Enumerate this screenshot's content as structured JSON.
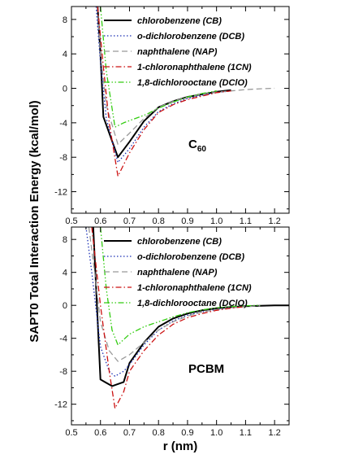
{
  "chart_data": [
    {
      "type": "line",
      "panel_label_main": "C",
      "panel_label_sub": "60",
      "xlim": [
        0.5,
        1.25
      ],
      "ylim": [
        -14.5,
        9.5
      ],
      "xticks": [
        "0.5",
        "0.6",
        "0.7",
        "0.8",
        "0.9",
        "1.0",
        "1.1",
        "1.2"
      ],
      "yticks": [
        "8",
        "4",
        "0",
        "-4",
        "-8",
        "-12"
      ],
      "legend_position": "top-right",
      "series": [
        {
          "name": "chlorobenzene (CB)",
          "color": "#000000",
          "dash": "solid",
          "x": [
            0.59,
            0.6,
            0.61,
            0.66,
            0.7,
            0.75,
            0.8,
            0.85,
            0.9,
            0.95,
            1.0,
            1.05
          ],
          "y": [
            9.5,
            4.0,
            -3.3,
            -8.0,
            -6.2,
            -3.8,
            -2.2,
            -1.5,
            -1.0,
            -0.7,
            -0.4,
            -0.2
          ]
        },
        {
          "name": "o-dichlorobenzene (DCB)",
          "color": "#1a2fb5",
          "dash": "dot",
          "x": [
            0.585,
            0.6,
            0.62,
            0.66,
            0.7,
            0.75,
            0.8,
            0.85,
            0.9,
            0.95,
            1.0,
            1.05
          ],
          "y": [
            9.5,
            3.0,
            -3.5,
            -8.6,
            -7.0,
            -4.5,
            -2.7,
            -1.8,
            -1.2,
            -0.8,
            -0.5,
            -0.3
          ]
        },
        {
          "name": "naphthalene (NAP)",
          "color": "#999999",
          "dash": "dash",
          "x": [
            0.59,
            0.6,
            0.62,
            0.66,
            0.7,
            0.75,
            0.8,
            0.85,
            0.9,
            0.95,
            1.0,
            1.05,
            1.1,
            1.15,
            1.2
          ],
          "y": [
            9.5,
            4.0,
            -2.0,
            -6.5,
            -5.2,
            -3.5,
            -2.2,
            -1.5,
            -1.0,
            -0.7,
            -0.45,
            -0.3,
            -0.15,
            -0.05,
            0.0
          ]
        },
        {
          "name": "1-chloronaphthalene (1CN)",
          "color": "#cc1111",
          "dash": "dashdot",
          "x": [
            0.59,
            0.61,
            0.63,
            0.66,
            0.7,
            0.75,
            0.8,
            0.85,
            0.9,
            0.95,
            1.0,
            1.05
          ],
          "y": [
            9.5,
            2.5,
            -4.0,
            -10.2,
            -7.5,
            -4.8,
            -2.8,
            -1.9,
            -1.3,
            -0.9,
            -0.5,
            -0.3
          ]
        },
        {
          "name": "1,8-dichlorooctane (DClO)",
          "color": "#33cc11",
          "dash": "dashdotdot",
          "x": [
            0.6,
            0.62,
            0.65,
            0.68,
            0.72,
            0.76,
            0.8,
            0.85,
            0.9,
            0.95,
            1.0
          ],
          "y": [
            9.5,
            2.0,
            -4.5,
            -4.0,
            -3.5,
            -3.0,
            -2.3,
            -1.6,
            -1.0,
            -0.6,
            -0.3
          ]
        }
      ]
    },
    {
      "type": "line",
      "panel_label_main": "PCBM",
      "panel_label_sub": "",
      "xlim": [
        0.5,
        1.25
      ],
      "ylim": [
        -14.5,
        9.5
      ],
      "xticks": [
        "0.5",
        "0.6",
        "0.7",
        "0.8",
        "0.9",
        "1.0",
        "1.1",
        "1.2"
      ],
      "yticks": [
        "8",
        "4",
        "0",
        "-4",
        "-8",
        "-12"
      ],
      "legend_position": "top-right",
      "series": [
        {
          "name": "chlorobenzene (CB)",
          "color": "#000000",
          "dash": "solid",
          "x": [
            0.575,
            0.6,
            0.64,
            0.68,
            0.7,
            0.73,
            0.75,
            0.8,
            0.85,
            0.9,
            0.95,
            1.0,
            1.05,
            1.1,
            1.15,
            1.2,
            1.25
          ],
          "y": [
            9.5,
            -9.0,
            -9.8,
            -9.3,
            -7.0,
            -5.5,
            -4.5,
            -2.6,
            -1.6,
            -1.0,
            -0.6,
            -0.35,
            -0.2,
            -0.1,
            -0.05,
            0.0,
            0.0
          ]
        },
        {
          "name": "o-dichlorobenzene (DCB)",
          "color": "#1a2fb5",
          "dash": "dot",
          "x": [
            0.55,
            0.57,
            0.6,
            0.63,
            0.65,
            0.68,
            0.7,
            0.75,
            0.8,
            0.85,
            0.9,
            0.95,
            1.0,
            1.05,
            1.1
          ],
          "y": [
            9.5,
            4.0,
            -5.0,
            -8.0,
            -8.6,
            -8.0,
            -7.2,
            -4.8,
            -3.0,
            -1.9,
            -1.2,
            -0.8,
            -0.5,
            -0.3,
            -0.1
          ]
        },
        {
          "name": "naphthalene (NAP)",
          "color": "#999999",
          "dash": "dash",
          "x": [
            0.56,
            0.58,
            0.6,
            0.63,
            0.66,
            0.7,
            0.75,
            0.8,
            0.85,
            0.9,
            0.95,
            1.0,
            1.05,
            1.1,
            1.15
          ],
          "y": [
            9.5,
            4.0,
            -2.0,
            -5.5,
            -6.8,
            -6.0,
            -4.5,
            -3.0,
            -2.0,
            -1.3,
            -0.8,
            -0.5,
            -0.3,
            -0.15,
            -0.05
          ]
        },
        {
          "name": "1-chloronaphthalene (1CN)",
          "color": "#cc1111",
          "dash": "dashdot",
          "x": [
            0.57,
            0.6,
            0.63,
            0.65,
            0.68,
            0.7,
            0.75,
            0.8,
            0.85,
            0.9,
            0.95,
            1.0,
            1.05,
            1.1
          ],
          "y": [
            9.5,
            0.0,
            -8.0,
            -12.5,
            -10.5,
            -8.0,
            -5.5,
            -3.6,
            -2.3,
            -1.5,
            -1.0,
            -0.6,
            -0.35,
            -0.15
          ]
        },
        {
          "name": "1,8-dichlorooctane (DClO)",
          "color": "#33cc11",
          "dash": "dashdotdot",
          "x": [
            0.6,
            0.62,
            0.64,
            0.66,
            0.7,
            0.75,
            0.8,
            0.85,
            0.9,
            0.95,
            1.0,
            1.05,
            1.1,
            1.15
          ],
          "y": [
            9.5,
            2.0,
            -3.0,
            -4.8,
            -3.5,
            -2.6,
            -2.0,
            -1.4,
            -0.9,
            -0.55,
            -0.3,
            -0.15,
            -0.05,
            0.0
          ]
        }
      ]
    }
  ],
  "ylabel": "SAPT0 Total Interaction Energy (kcal/mol)",
  "xlabel": "r (nm)"
}
